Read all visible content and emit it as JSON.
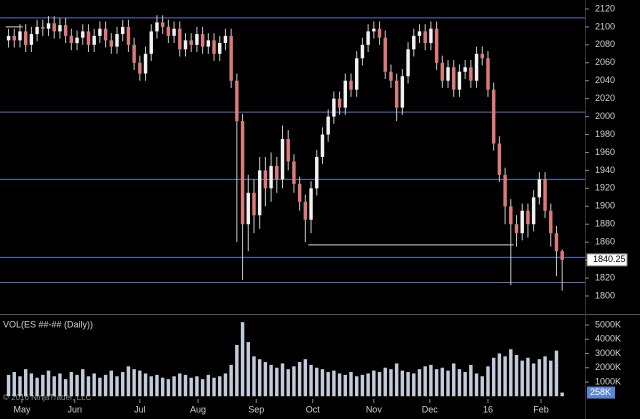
{
  "chart_data": [
    {
      "type": "candlestick",
      "open": [
        2085,
        2090,
        2085,
        2095,
        2080,
        2092,
        2100,
        2098,
        2104,
        2095,
        2102,
        2090,
        2082,
        2088,
        2095,
        2080,
        2090,
        2098,
        2085,
        2078,
        2092,
        2100,
        2080,
        2060,
        2048,
        2070,
        2095,
        2105,
        2100,
        2090,
        2098,
        2075,
        2085,
        2080,
        2092,
        2078,
        2085,
        2070,
        2082,
        2090,
        2040,
        1995,
        1880,
        1915,
        1890,
        1940,
        1920,
        1945,
        1930,
        1975,
        1950,
        1925,
        1905,
        1885,
        1920,
        1955,
        1980,
        2000,
        2020,
        2010,
        2040,
        2030,
        2065,
        2080,
        2095,
        2098,
        2088,
        2050,
        2040,
        2010,
        2045,
        2075,
        2090,
        2095,
        2082,
        2098,
        2060,
        2040,
        2055,
        2030,
        2050,
        2055,
        2040,
        2070,
        2065,
        2030,
        1970,
        1935,
        1900,
        1880,
        1870,
        1895,
        1880,
        1910,
        1930,
        1895,
        1870,
        1850
      ],
      "high": [
        2098,
        2098,
        2103,
        2103,
        2100,
        2108,
        2108,
        2112,
        2112,
        2110,
        2110,
        2098,
        2096,
        2103,
        2103,
        2098,
        2106,
        2106,
        2093,
        2100,
        2108,
        2108,
        2088,
        2068,
        2078,
        2103,
        2113,
        2113,
        2108,
        2106,
        2106,
        2093,
        2093,
        2100,
        2100,
        2093,
        2093,
        2090,
        2098,
        2098,
        2048,
        2003,
        1935,
        1930,
        1955,
        1955,
        1960,
        1955,
        1990,
        1985,
        1958,
        1933,
        1913,
        1928,
        1963,
        1988,
        2008,
        2028,
        2028,
        2048,
        2048,
        2073,
        2088,
        2103,
        2106,
        2106,
        2096,
        2058,
        2048,
        2053,
        2083,
        2098,
        2103,
        2103,
        2106,
        2106,
        2068,
        2063,
        2063,
        2058,
        2063,
        2063,
        2078,
        2078,
        2073,
        2038,
        1978,
        1943,
        1908,
        1890,
        1903,
        1903,
        1918,
        1938,
        1938,
        1903,
        1878,
        1852
      ],
      "low": [
        2077,
        2077,
        2077,
        2072,
        2072,
        2084,
        2090,
        2090,
        2087,
        2087,
        2082,
        2074,
        2074,
        2080,
        2072,
        2072,
        2082,
        2077,
        2070,
        2070,
        2084,
        2072,
        2052,
        2040,
        2040,
        2062,
        2087,
        2092,
        2082,
        2082,
        2067,
        2067,
        2072,
        2072,
        2070,
        2070,
        2062,
        2062,
        2074,
        2032,
        1860,
        1818,
        1850,
        1870,
        1875,
        1900,
        1905,
        1915,
        1920,
        1940,
        1915,
        1895,
        1860,
        1870,
        1912,
        1947,
        1972,
        1992,
        2002,
        2002,
        2022,
        2022,
        2057,
        2072,
        2087,
        2080,
        2042,
        2032,
        1995,
        2002,
        2037,
        2067,
        2082,
        2074,
        2074,
        2052,
        2032,
        2032,
        2022,
        2022,
        2042,
        2032,
        2032,
        2057,
        2022,
        1962,
        1927,
        1880,
        1812,
        1855,
        1862,
        1865,
        1872,
        1902,
        1887,
        1855,
        1822,
        1806
      ],
      "close": [
        2090,
        2085,
        2095,
        2080,
        2092,
        2100,
        2098,
        2104,
        2095,
        2102,
        2090,
        2082,
        2088,
        2095,
        2080,
        2090,
        2098,
        2085,
        2078,
        2092,
        2100,
        2080,
        2060,
        2048,
        2070,
        2095,
        2105,
        2100,
        2090,
        2098,
        2075,
        2085,
        2080,
        2092,
        2078,
        2085,
        2070,
        2082,
        2090,
        2040,
        1995,
        1880,
        1915,
        1890,
        1940,
        1920,
        1945,
        1930,
        1975,
        1950,
        1925,
        1905,
        1885,
        1920,
        1955,
        1980,
        2000,
        2020,
        2010,
        2040,
        2030,
        2065,
        2080,
        2095,
        2098,
        2088,
        2050,
        2040,
        2010,
        2045,
        2075,
        2090,
        2095,
        2082,
        2098,
        2060,
        2040,
        2055,
        2030,
        2050,
        2055,
        2040,
        2070,
        2065,
        2030,
        1970,
        1935,
        1900,
        1880,
        1870,
        1895,
        1880,
        1910,
        1930,
        1895,
        1870,
        1850,
        1840.25
      ],
      "up_color": "#f2f2f2",
      "down_color": "#e07a7a",
      "wick_color": "#c8c8c8",
      "xlim": [
        -1.5,
        101
      ],
      "ylim": [
        1781,
        2130
      ],
      "yticks": [
        1800,
        1820,
        1840,
        1860,
        1880,
        1900,
        1920,
        1940,
        1960,
        1980,
        2000,
        2020,
        2040,
        2060,
        2080,
        2100,
        2120
      ],
      "xticks": [
        {
          "value": 2.35,
          "label": "May"
        },
        {
          "value": 11.6,
          "label": "Jun"
        },
        {
          "value": 23,
          "label": "Jul"
        },
        {
          "value": 33.2,
          "label": "Aug"
        },
        {
          "value": 43.4,
          "label": "Sep"
        },
        {
          "value": 53.3,
          "label": "Oct"
        },
        {
          "value": 64,
          "label": "Nov"
        },
        {
          "value": 73.8,
          "label": "Dec"
        },
        {
          "value": 84,
          "label": "16"
        },
        {
          "value": 93.3,
          "label": "Feb"
        }
      ],
      "hlines": [
        2110,
        2005,
        1930,
        1843,
        1815
      ],
      "hline_color": "#5572c0",
      "segments": [
        {
          "y": 1857,
          "x": [
            52.5,
            88.5
          ],
          "color": "#d8d8a8"
        },
        {
          "y": 2100,
          "x": [
            -0.5,
            2.5
          ],
          "color": "#d8d8a8"
        }
      ]
    },
    {
      "type": "bar",
      "title": "VOL(ES ##-## (Daily))",
      "values": [
        1500,
        1700,
        1400,
        1900,
        1600,
        1300,
        1500,
        1800,
        1400,
        1600,
        1200,
        1700,
        1500,
        1900,
        1400,
        1600,
        1300,
        1500,
        1800,
        1400,
        1700,
        2100,
        1900,
        1800,
        1600,
        1400,
        1500,
        1300,
        1200,
        1400,
        1600,
        1500,
        1300,
        1400,
        1200,
        1500,
        1300,
        1400,
        1600,
        2200,
        3600,
        5200,
        3800,
        2800,
        2600,
        2400,
        2200,
        2000,
        2300,
        1900,
        2100,
        2400,
        2600,
        2200,
        2000,
        1900,
        1700,
        1800,
        1600,
        1500,
        1700,
        1400,
        1500,
        1600,
        1800,
        1700,
        2000,
        1900,
        2300,
        1800,
        1700,
        1600,
        1900,
        2100,
        2200,
        1900,
        2000,
        1800,
        2300,
        1900,
        1700,
        2200,
        1600,
        1400,
        2100,
        2700,
        3000,
        2800,
        3300,
        2900,
        2500,
        2700,
        2300,
        2600,
        2800,
        2500,
        3200,
        258
      ],
      "last_label": "258K",
      "color": "#c4ccdc",
      "ylim": [
        -53,
        5491
      ],
      "yticks": [
        {
          "value": 1000,
          "label": "1000K"
        },
        {
          "value": 2000,
          "label": "2000K"
        },
        {
          "value": 3000,
          "label": "3000K"
        },
        {
          "value": 4000,
          "label": "4000K"
        },
        {
          "value": 5000,
          "label": "5000K"
        }
      ]
    }
  ],
  "copyright": "© 2016 NinjaTrader, LLC"
}
